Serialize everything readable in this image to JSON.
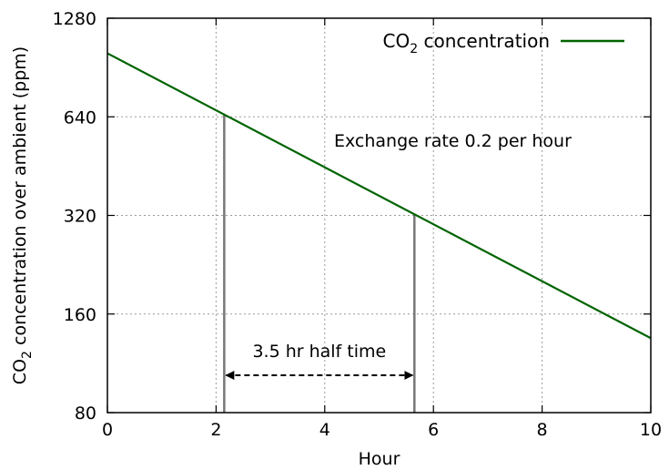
{
  "chart_data": {
    "type": "line",
    "xlabel": "Hour",
    "ylabel_main": "CO",
    "ylabel_sub": "2",
    "ylabel_rest": " concentration over ambient (ppm)",
    "xlim": [
      0,
      10
    ],
    "ylim": [
      80,
      1280
    ],
    "y_scale": "log2",
    "grid": true,
    "legend_position": "top-right",
    "x_ticks": [
      0,
      2,
      4,
      6,
      8,
      10
    ],
    "x_tick_labels": [
      "0",
      "2",
      "4",
      "6",
      "8",
      "10"
    ],
    "y_ticks": [
      80,
      160,
      320,
      640,
      1280
    ],
    "y_tick_labels": [
      "80",
      "160",
      "320",
      "640",
      "1280"
    ],
    "series": [
      {
        "name_main": "CO",
        "name_sub": "2",
        "name_rest": " concentration",
        "color": "#006400",
        "x": [
          0,
          10
        ],
        "y": [
          1000,
          135
        ]
      }
    ],
    "markers": [
      {
        "x": 2.15,
        "y": 650,
        "color": "#777777"
      },
      {
        "x": 5.65,
        "y": 322,
        "color": "#777777"
      }
    ],
    "annotations": {
      "exchange_rate": "Exchange rate 0.2 per hour",
      "half_time": "3.5 hr half time",
      "arrow_from": 2.15,
      "arrow_to": 5.65,
      "arrow_y": 104
    }
  }
}
